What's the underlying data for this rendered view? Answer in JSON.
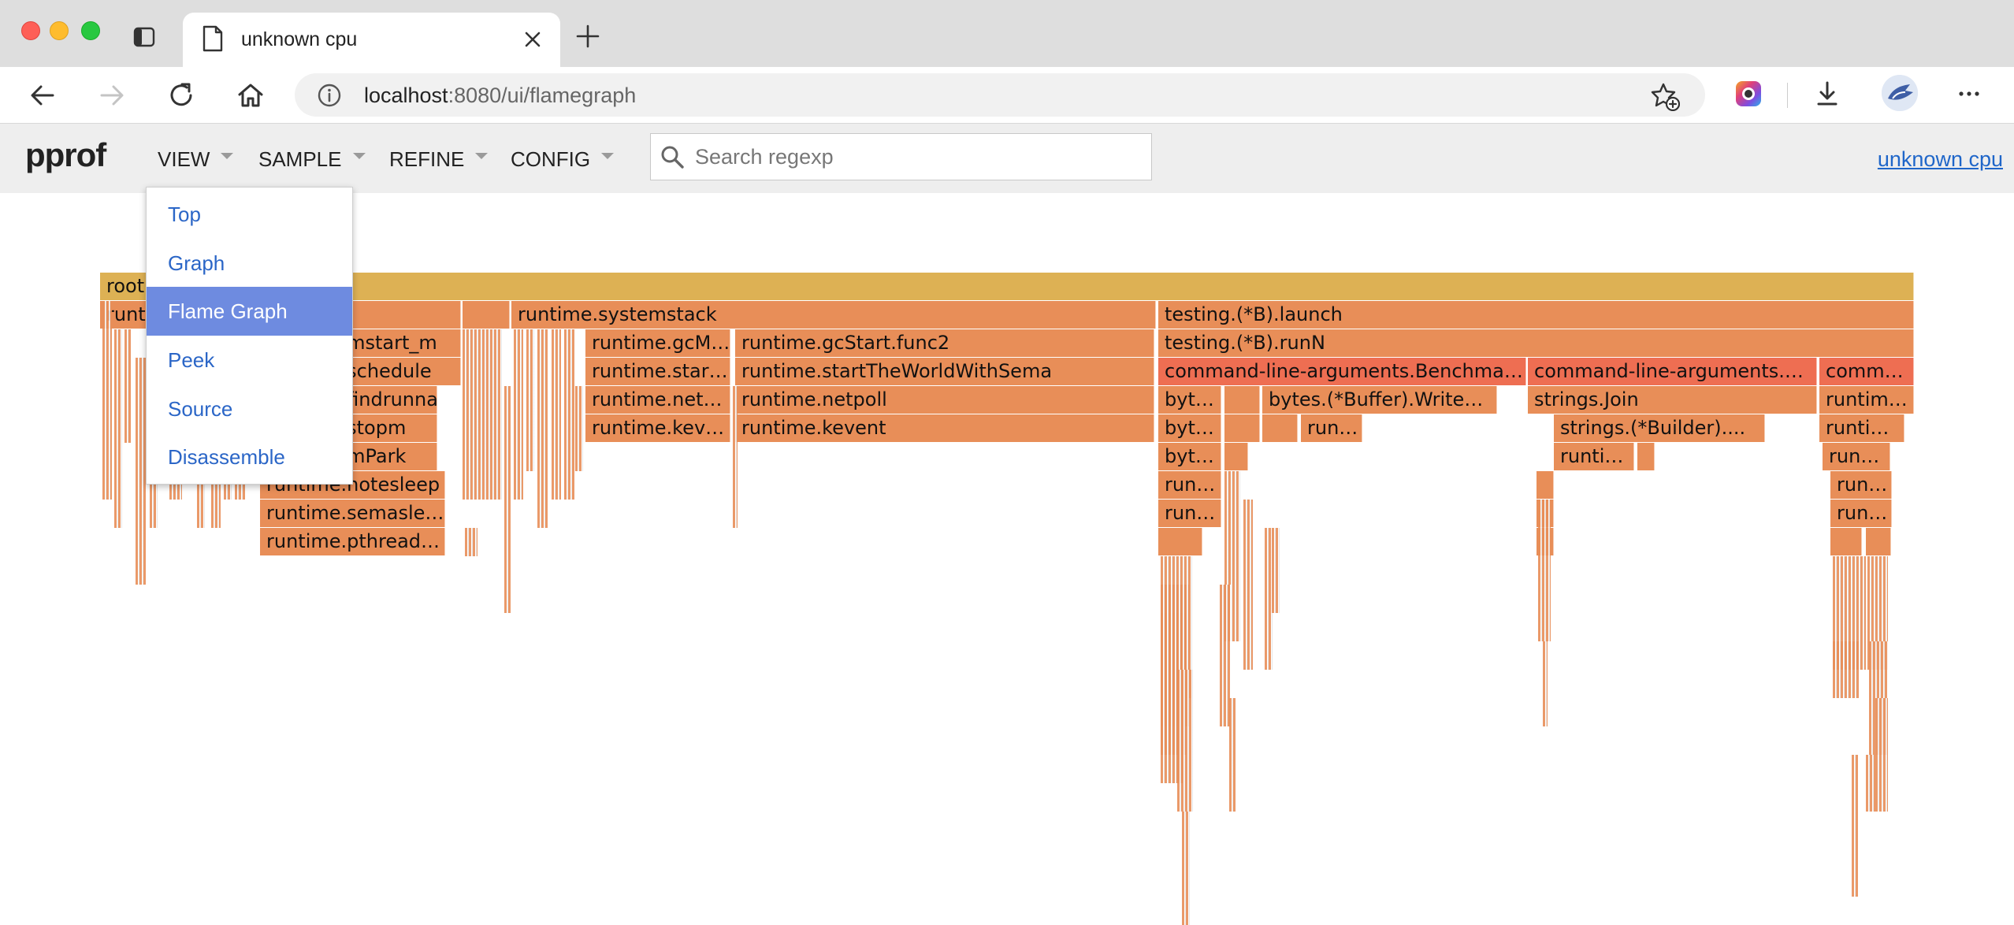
{
  "browser": {
    "tab_title": "unknown cpu",
    "url_host": "localhost",
    "url_rest": ":8080/ui/flamegraph",
    "icons": [
      "tab-actions-icon",
      "page-icon",
      "close-icon",
      "plus-icon",
      "back-icon",
      "forward-icon",
      "reload-icon",
      "home-icon",
      "info-icon",
      "favorite-add-icon",
      "extension-icon",
      "download-icon",
      "more-icon"
    ]
  },
  "pprof": {
    "logo": "pprof",
    "menus": [
      "VIEW",
      "SAMPLE",
      "REFINE",
      "CONFIG"
    ],
    "search_placeholder": "Search regexp",
    "profile_link": "unknown cpu"
  },
  "view_menu": {
    "items": [
      "Top",
      "Graph",
      "Flame Graph",
      "Peek",
      "Source",
      "Disassemble"
    ],
    "selected": "Flame Graph"
  },
  "flame_graph": {
    "colors": {
      "root": "#ddb154",
      "frame": "#e88e58",
      "frame_light": "#eca06e",
      "hot": "#ee6e52"
    },
    "frames": [
      "root",
      "runtime.mstart",
      "runtime.systemstack",
      "testing.(*B).launch",
      "runtime.mstart_m",
      "runtime.gcM…",
      "runtime.gcStart.func2",
      "testing.(*B).runN",
      "runtime.schedule",
      "runtime.star…",
      "runtime.startTheWorldWithSema",
      "command-line-arguments.Benchma…",
      "command-line-arguments.…",
      "comm…",
      "runtime.findrunnable",
      "runtime.net…",
      "runtime.netpoll",
      "byt…",
      "bytes.(*Buffer).Write…",
      "strings.Join",
      "runtim…",
      "runtime.stopm",
      "runtime.kev…",
      "runtime.kevent",
      "run…",
      "strings.(*Builder)....",
      "runti…",
      "runtime.mPark",
      "runtime.notesleep",
      "runtime.semasle…",
      "runtime.pthread…"
    ]
  }
}
